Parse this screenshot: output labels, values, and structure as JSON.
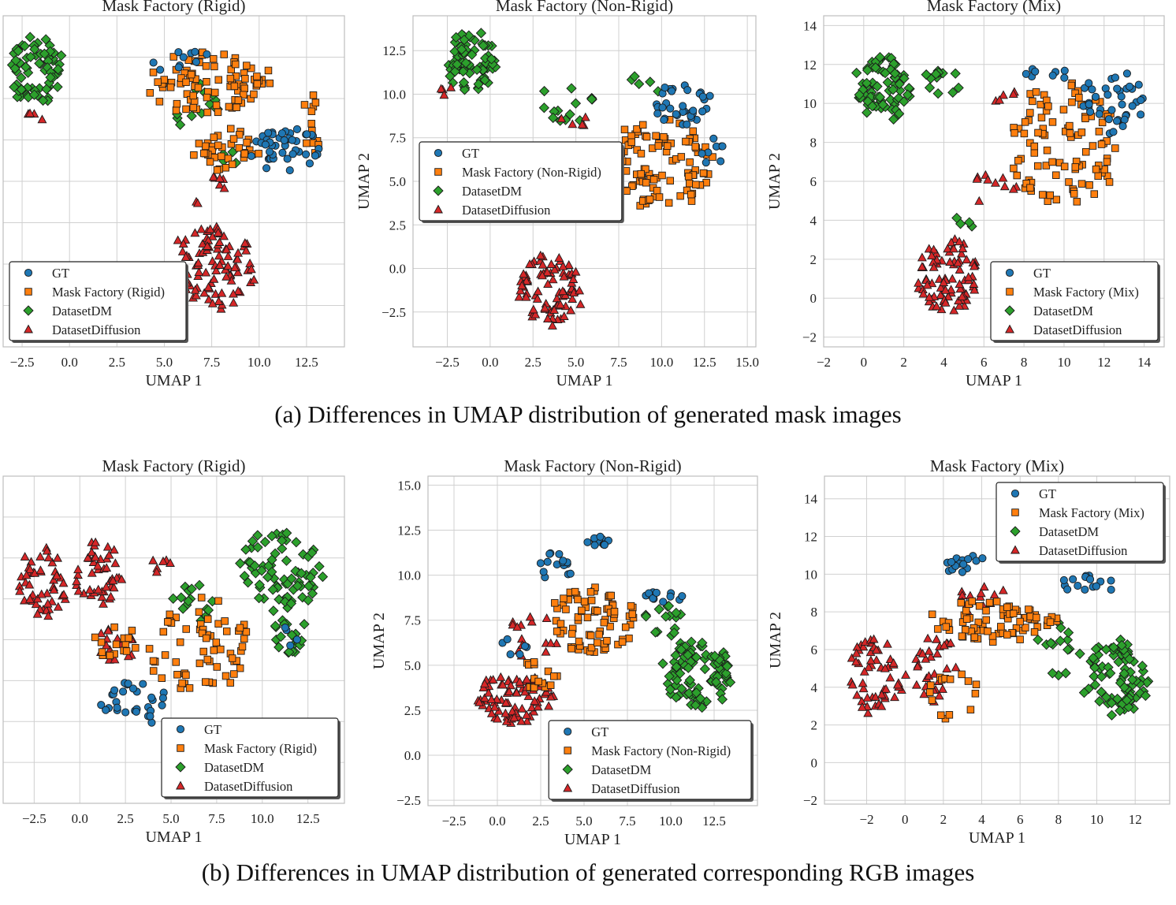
{
  "captions": {
    "a": "(a) Differences in UMAP distribution of generated mask images",
    "b": "(b) Differences in UMAP distribution of generated corresponding RGB images"
  },
  "colors": {
    "GT": "#1f77b4",
    "Mask Factory": "#ff7f0e",
    "DatasetDM": "#2ca02c",
    "DatasetDiffusion": "#d62728",
    "grid": "#d0d0d0",
    "spine": "#bdbdbd"
  },
  "chart_data": [
    {
      "type": "scatter",
      "id": "a1",
      "title": "Mask Factory (Rigid)",
      "xlabel": "UMAP 1",
      "ylabel": "",
      "xlim": [
        -3.5,
        14.5
      ],
      "ylim": [
        -5.5,
        14.0
      ],
      "xticks": [
        -2.5,
        0.0,
        2.5,
        5.0,
        7.5,
        10.0,
        12.5
      ],
      "xtick_labels": [
        "−2.5",
        "0.0",
        "2.5",
        "5.0",
        "7.5",
        "10.0",
        "12.5"
      ],
      "yticks": [],
      "ytick_labels": [],
      "legend_loc": "lower-left",
      "legend": [
        "GT",
        "Mask Factory (Rigid)",
        "DatasetDM",
        "DatasetDiffusion"
      ],
      "series": [
        {
          "name": "DatasetDM",
          "marker": "diamond",
          "clusters": [
            [
              -1.8,
              10.8,
              1.5,
              2.2,
              70
            ],
            [
              6.5,
              9.0,
              2.0,
              1.8,
              14
            ],
            [
              8.5,
              5.5,
              0.6,
              0.6,
              4
            ]
          ]
        },
        {
          "name": "DatasetDiffusion",
          "marker": "triangle",
          "clusters": [
            [
              7.6,
              -0.8,
              2.4,
              2.6,
              95
            ],
            [
              -1.8,
              8.2,
              0.6,
              0.5,
              4
            ],
            [
              7.5,
              3.5,
              1.0,
              1.2,
              8
            ]
          ]
        },
        {
          "name": "Mask Factory (Rigid)",
          "marker": "square",
          "clusters": [
            [
              7.5,
              10.0,
              3.5,
              2.0,
              85
            ],
            [
              8.2,
              6.0,
              1.8,
              1.5,
              35
            ],
            [
              12.8,
              7.5,
              0.8,
              2.0,
              12
            ]
          ]
        },
        {
          "name": "GT",
          "marker": "circle",
          "clusters": [
            [
              11.5,
              6.0,
              2.0,
              1.6,
              45
            ],
            [
              5.5,
              11.5,
              2.0,
              1.0,
              10
            ]
          ]
        }
      ]
    },
    {
      "type": "scatter",
      "id": "a2",
      "title": "Mask Factory (Non-Rigid)",
      "xlabel": "UMAP 1",
      "ylabel": "UMAP 2",
      "xlim": [
        -4.5,
        15.5
      ],
      "ylim": [
        -4.5,
        14.5
      ],
      "xticks": [
        -2.5,
        0.0,
        2.5,
        5.0,
        7.5,
        10.0,
        12.5,
        15.0
      ],
      "xtick_labels": [
        "−2.5",
        "0.0",
        "2.5",
        "5.0",
        "7.5",
        "10.0",
        "12.5",
        "15.0"
      ],
      "yticks": [
        -2.5,
        0.0,
        2.5,
        5.0,
        7.5,
        10.0,
        12.5
      ],
      "ytick_labels": [
        "−2.5",
        "0.0",
        "2.5",
        "5.0",
        "7.5",
        "10.0",
        "12.5"
      ],
      "legend_loc": "upper-left",
      "legend": [
        "GT",
        "Mask Factory (Non-Rigid)",
        "DatasetDM",
        "DatasetDiffusion"
      ],
      "series": [
        {
          "name": "DatasetDM",
          "marker": "diamond",
          "clusters": [
            [
              -1.0,
              11.8,
              1.5,
              2.0,
              70
            ],
            [
              4.5,
              9.5,
              2.0,
              1.2,
              14
            ],
            [
              9.0,
              10.5,
              1.0,
              0.8,
              5
            ]
          ]
        },
        {
          "name": "DatasetDiffusion",
          "marker": "triangle",
          "clusters": [
            [
              3.5,
              -1.2,
              2.0,
              2.2,
              85
            ],
            [
              5.0,
              8.5,
              1.0,
              0.4,
              5
            ],
            [
              -2.5,
              10.2,
              0.6,
              0.3,
              4
            ]
          ]
        },
        {
          "name": "Mask Factory (Non-Rigid)",
          "marker": "square",
          "clusters": [
            [
              10.0,
              6.0,
              3.2,
              2.8,
              95
            ]
          ]
        },
        {
          "name": "GT",
          "marker": "circle",
          "clusters": [
            [
              11.0,
              9.5,
              2.0,
              1.4,
              35
            ],
            [
              13.0,
              6.5,
              0.8,
              1.0,
              8
            ]
          ]
        }
      ]
    },
    {
      "type": "scatter",
      "id": "a3",
      "title": "Mask Factory (Mix)",
      "xlabel": "UMAP 1",
      "ylabel": "UMAP 2",
      "xlim": [
        -2.0,
        15.0
      ],
      "ylim": [
        -2.5,
        14.5
      ],
      "xticks": [
        -2,
        0,
        2,
        4,
        6,
        8,
        10,
        12,
        14
      ],
      "xtick_labels": [
        "−2",
        "0",
        "2",
        "4",
        "6",
        "8",
        "10",
        "12",
        "14"
      ],
      "yticks": [
        -2,
        0,
        2,
        4,
        6,
        8,
        10,
        12,
        14
      ],
      "ytick_labels": [
        "−2",
        "0",
        "2",
        "4",
        "6",
        "8",
        "10",
        "12",
        "14"
      ],
      "legend_loc": "lower-right",
      "legend": [
        "GT",
        "Mask Factory (Mix)",
        "DatasetDM",
        "DatasetDiffusion"
      ],
      "series": [
        {
          "name": "DatasetDM",
          "marker": "diamond",
          "clusters": [
            [
              1.0,
              10.8,
              1.6,
              1.8,
              75
            ],
            [
              4.0,
              11.0,
              1.5,
              0.8,
              12
            ],
            [
              5.0,
              4.0,
              0.6,
              0.6,
              4
            ]
          ]
        },
        {
          "name": "DatasetDiffusion",
          "marker": "triangle",
          "clusters": [
            [
              4.2,
              1.2,
              1.6,
              2.0,
              85
            ],
            [
              6.5,
              5.5,
              1.2,
              1.2,
              10
            ],
            [
              7.0,
              10.5,
              1.0,
              0.6,
              5
            ]
          ]
        },
        {
          "name": "Mask Factory (Mix)",
          "marker": "square",
          "clusters": [
            [
              10.0,
              8.0,
              3.0,
              3.5,
              100
            ]
          ]
        },
        {
          "name": "GT",
          "marker": "circle",
          "clusters": [
            [
              12.5,
              10.0,
              1.8,
              1.8,
              40
            ],
            [
              9.5,
              11.5,
              1.5,
              0.5,
              8
            ]
          ]
        }
      ]
    },
    {
      "type": "scatter",
      "id": "b1",
      "title": "Mask Factory (Rigid)",
      "xlabel": "UMAP 1",
      "ylabel": "",
      "xlim": [
        -4.2,
        14.5
      ],
      "ylim": [
        -1.0,
        14.5
      ],
      "xticks": [
        -2.5,
        0.0,
        2.5,
        5.0,
        7.5,
        10.0,
        12.5
      ],
      "xtick_labels": [
        "−2.5",
        "0.0",
        "2.5",
        "5.0",
        "7.5",
        "10.0",
        "12.5"
      ],
      "yticks": [],
      "ytick_labels": [],
      "legend_loc": "lower-right",
      "legend": [
        "GT",
        "Mask Factory (Rigid)",
        "DatasetDM",
        "DatasetDiffusion"
      ],
      "series": [
        {
          "name": "DatasetDM",
          "marker": "diamond",
          "clusters": [
            [
              11.0,
              10.0,
              2.5,
              2.0,
              75
            ],
            [
              11.5,
              7.0,
              1.0,
              1.0,
              20
            ],
            [
              6.5,
              8.5,
              1.5,
              1.0,
              15
            ]
          ]
        },
        {
          "name": "DatasetDiffusion",
          "marker": "triangle",
          "clusters": [
            [
              -2.0,
              9.5,
              1.5,
              1.8,
              50
            ],
            [
              1.0,
              9.8,
              1.5,
              1.8,
              45
            ],
            [
              2.0,
              6.5,
              1.2,
              1.0,
              15
            ],
            [
              4.5,
              10.2,
              0.8,
              0.4,
              6
            ]
          ]
        },
        {
          "name": "Mask Factory (Rigid)",
          "marker": "square",
          "clusters": [
            [
              6.5,
              6.5,
              3.0,
              2.5,
              65
            ],
            [
              2.0,
              6.8,
              1.5,
              1.0,
              15
            ]
          ]
        },
        {
          "name": "GT",
          "marker": "circle",
          "clusters": [
            [
              3.0,
              3.8,
              2.0,
              1.2,
              30
            ],
            [
              11.5,
              7.0,
              0.6,
              0.6,
              4
            ]
          ]
        }
      ]
    },
    {
      "type": "scatter",
      "id": "b2",
      "title": "Mask Factory (Non-Rigid)",
      "xlabel": "UMAP 1",
      "ylabel": "UMAP 2",
      "xlim": [
        -4.0,
        15.0
      ],
      "ylim": [
        -2.8,
        15.5
      ],
      "xticks": [
        -2.5,
        0.0,
        2.5,
        5.0,
        7.5,
        10.0,
        12.5
      ],
      "xtick_labels": [
        "−2.5",
        "0.0",
        "2.5",
        "5.0",
        "7.5",
        "10.0",
        "12.5"
      ],
      "yticks": [
        -2.5,
        0.0,
        2.5,
        5.0,
        7.5,
        10.0,
        12.5,
        15.0
      ],
      "ytick_labels": [
        "−2.5",
        "0.0",
        "2.5",
        "5.0",
        "7.5",
        "10.0",
        "12.5",
        "15.0"
      ],
      "legend_loc": "lower-right",
      "legend": [
        "GT",
        "Mask Factory (Non-Rigid)",
        "DatasetDM",
        "DatasetDiffusion"
      ],
      "series": [
        {
          "name": "DatasetDM",
          "marker": "diamond",
          "clusters": [
            [
              11.5,
              4.5,
              2.2,
              2.0,
              90
            ],
            [
              9.5,
              7.5,
              1.2,
              1.2,
              15
            ]
          ]
        },
        {
          "name": "DatasetDiffusion",
          "marker": "triangle",
          "clusters": [
            [
              1.0,
              3.2,
              2.5,
              1.5,
              85
            ],
            [
              2.0,
              6.5,
              1.5,
              1.5,
              15
            ]
          ]
        },
        {
          "name": "Mask Factory (Non-Rigid)",
          "marker": "square",
          "clusters": [
            [
              5.5,
              7.5,
              3.0,
              2.0,
              75
            ],
            [
              2.5,
              4.5,
              1.2,
              1.0,
              15
            ]
          ]
        },
        {
          "name": "GT",
          "marker": "circle",
          "clusters": [
            [
              3.5,
              10.5,
              1.2,
              0.8,
              15
            ],
            [
              5.8,
              11.9,
              0.8,
              0.3,
              12
            ],
            [
              9.5,
              8.8,
              1.2,
              0.4,
              12
            ],
            [
              0.8,
              6.0,
              1.0,
              0.5,
              6
            ]
          ]
        }
      ]
    },
    {
      "type": "scatter",
      "id": "b3",
      "title": "Mask Factory (Mix)",
      "xlabel": "UMAP 1",
      "ylabel": "UMAP 2",
      "xlim": [
        -4.2,
        13.8
      ],
      "ylim": [
        -2.2,
        15.2
      ],
      "xticks": [
        -2,
        0,
        2,
        4,
        6,
        8,
        10,
        12
      ],
      "xtick_labels": [
        "−2",
        "0",
        "2",
        "4",
        "6",
        "8",
        "10",
        "12"
      ],
      "yticks": [
        -2,
        0,
        2,
        4,
        6,
        8,
        10,
        12,
        14
      ],
      "ytick_labels": [
        "−2",
        "0",
        "2",
        "4",
        "6",
        "8",
        "10",
        "12",
        "14"
      ],
      "legend_loc": "upper-right",
      "legend": [
        "GT",
        "Mask Factory (Mix)",
        "DatasetDM",
        "DatasetDiffusion"
      ],
      "series": [
        {
          "name": "DatasetDM",
          "marker": "diamond",
          "clusters": [
            [
              11.0,
              4.5,
              1.8,
              2.2,
              80
            ],
            [
              8.0,
              6.0,
              1.2,
              1.5,
              15
            ]
          ]
        },
        {
          "name": "DatasetDiffusion",
          "marker": "triangle",
          "clusters": [
            [
              -1.5,
              4.5,
              1.6,
              2.2,
              55
            ],
            [
              1.5,
              5.0,
              1.2,
              2.0,
              30
            ],
            [
              4.0,
              8.5,
              1.5,
              1.0,
              15
            ]
          ]
        },
        {
          "name": "Mask Factory (Mix)",
          "marker": "square",
          "clusters": [
            [
              4.5,
              7.5,
              3.5,
              1.2,
              75
            ],
            [
              2.5,
              3.5,
              1.5,
              1.5,
              15
            ]
          ]
        },
        {
          "name": "GT",
          "marker": "circle",
          "clusters": [
            [
              3.5,
              10.5,
              1.5,
              0.6,
              15
            ],
            [
              9.5,
              9.5,
              1.8,
              0.5,
              15
            ],
            [
              6.5,
              11.8,
              0.8,
              0.3,
              5
            ]
          ]
        }
      ]
    }
  ]
}
